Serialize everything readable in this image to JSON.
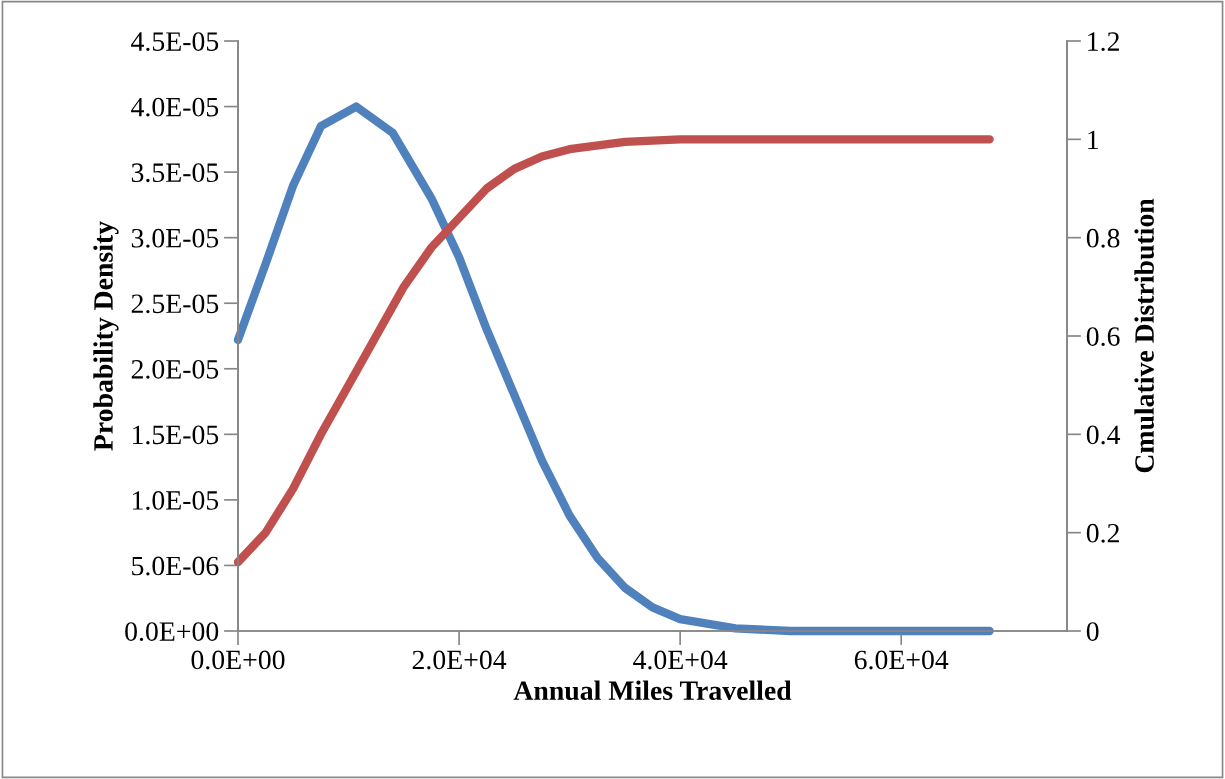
{
  "chart_data": {
    "type": "line",
    "xlabel": "Annual Miles Travelled",
    "ylabel": "Probability Density",
    "y2label": "Cmulative Distribution",
    "series": [
      {
        "color": "#4f81bd",
        "x": [
          0,
          2500,
          5000,
          7500,
          10700,
          14000,
          17500,
          20000,
          22500,
          25000,
          27500,
          30000,
          32500,
          35000,
          37500,
          40000,
          45000,
          50000,
          68000
        ],
        "values": [
          2.22e-05,
          2.8e-05,
          3.4e-05,
          3.85e-05,
          4e-05,
          3.8e-05,
          3.3e-05,
          2.85e-05,
          2.3e-05,
          1.8e-05,
          1.3e-05,
          8.8e-06,
          5.6e-06,
          3.3e-06,
          1.8e-06,
          9e-07,
          2e-07,
          0,
          0
        ]
      },
      {
        "color": "#c0504d",
        "axis": "y2",
        "x": [
          0,
          2500,
          5000,
          7500,
          10000,
          12500,
          15000,
          17500,
          20000,
          22500,
          25000,
          27500,
          30000,
          35000,
          40000,
          68000
        ],
        "values": [
          0.14,
          0.2,
          0.29,
          0.4,
          0.5,
          0.6,
          0.7,
          0.78,
          0.84,
          0.9,
          0.94,
          0.965,
          0.98,
          0.995,
          1.0,
          1.0
        ]
      }
    ],
    "xlim": [
      0,
      75000
    ],
    "xticks": [
      {
        "value": 0,
        "label": "0.0E+00"
      },
      {
        "value": 20000,
        "label": "2.0E+04"
      },
      {
        "value": 40000,
        "label": "4.0E+04"
      },
      {
        "value": 60000,
        "label": "6.0E+04"
      }
    ],
    "ylim": [
      0,
      4.5e-05
    ],
    "yticks": [
      {
        "value": 0,
        "label": "0.0E+00"
      },
      {
        "value": 5e-06,
        "label": "5.0E-06"
      },
      {
        "value": 1e-05,
        "label": "1.0E-05"
      },
      {
        "value": 1.5e-05,
        "label": "1.5E-05"
      },
      {
        "value": 2e-05,
        "label": "2.0E-05"
      },
      {
        "value": 2.5e-05,
        "label": "2.5E-05"
      },
      {
        "value": 3e-05,
        "label": "3.0E-05"
      },
      {
        "value": 3.5e-05,
        "label": "3.5E-05"
      },
      {
        "value": 4e-05,
        "label": "4.0E-05"
      },
      {
        "value": 4.5e-05,
        "label": "4.5E-05"
      }
    ],
    "y2lim": [
      0,
      1.2
    ],
    "y2ticks": [
      0,
      0.2,
      0.4,
      0.6,
      0.8,
      1,
      1.2
    ],
    "grid": false,
    "legend": false
  }
}
